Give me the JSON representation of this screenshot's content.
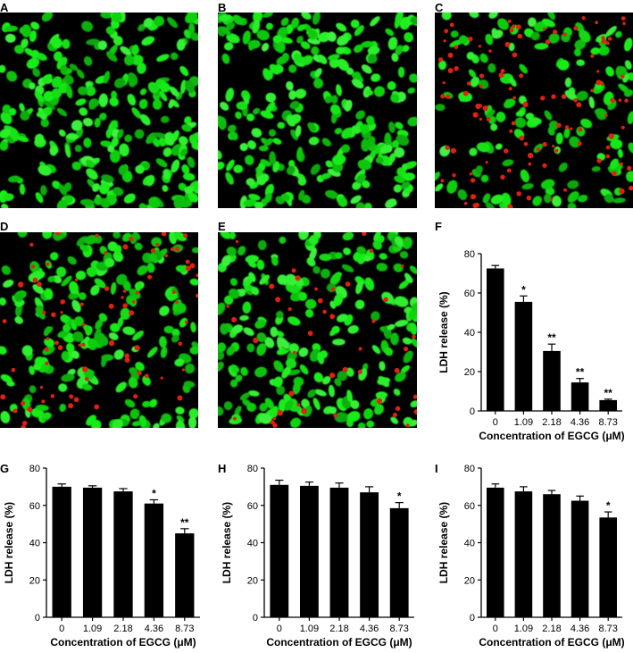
{
  "panels": {
    "micrographs": [
      {
        "letter": "A",
        "green_cells": 1.0,
        "red_cells": 0.0
      },
      {
        "letter": "B",
        "green_cells": 1.0,
        "red_cells": 0.0
      },
      {
        "letter": "C",
        "green_cells": 0.55,
        "red_cells": 1.0
      },
      {
        "letter": "D",
        "green_cells": 0.8,
        "red_cells": 0.7
      },
      {
        "letter": "E",
        "green_cells": 0.9,
        "red_cells": 0.4
      }
    ],
    "colors": {
      "green": "#22e022",
      "red": "#e02010",
      "background": "#000000",
      "bar": "#000000"
    }
  },
  "chart_data": [
    {
      "letter": "F",
      "type": "bar",
      "categories": [
        "0",
        "1.09",
        "2.18",
        "4.36",
        "8.73"
      ],
      "values": [
        72.5,
        55.5,
        30.5,
        14.5,
        5.5
      ],
      "errors": [
        1.5,
        3.0,
        3.5,
        2.0,
        0.5
      ],
      "significance": [
        "",
        "*",
        "**",
        "**",
        "**"
      ],
      "xlabel": "Concentration of EGCG (μM)",
      "ylabel": "LDH release (%)",
      "ylim": [
        0,
        80
      ],
      "yticks": [
        0,
        20,
        40,
        60,
        80
      ]
    },
    {
      "letter": "G",
      "type": "bar",
      "categories": [
        "0",
        "1.09",
        "2.18",
        "4.36",
        "8.73"
      ],
      "values": [
        70.0,
        69.5,
        67.5,
        61.0,
        45.0
      ],
      "errors": [
        1.5,
        1.0,
        1.5,
        2.0,
        2.5
      ],
      "significance": [
        "",
        "",
        "",
        "*",
        "**"
      ],
      "xlabel": "Concentration of EGCG (μM)",
      "ylabel": "LDH release (%)",
      "ylim": [
        0,
        80
      ],
      "yticks": [
        0,
        20,
        40,
        60,
        80
      ]
    },
    {
      "letter": "H",
      "type": "bar",
      "categories": [
        "0",
        "1.09",
        "2.18",
        "4.36",
        "8.73"
      ],
      "values": [
        71.0,
        70.5,
        69.5,
        67.0,
        58.5
      ],
      "errors": [
        2.5,
        2.0,
        2.5,
        3.0,
        3.0
      ],
      "significance": [
        "",
        "",
        "",
        "",
        "*"
      ],
      "xlabel": "Concentration of EGCG (μM)",
      "ylabel": "LDH release (%)",
      "ylim": [
        0,
        80
      ],
      "yticks": [
        0,
        20,
        40,
        60,
        80
      ]
    },
    {
      "letter": "I",
      "type": "bar",
      "categories": [
        "0",
        "1.09",
        "2.18",
        "4.36",
        "8.73"
      ],
      "values": [
        69.5,
        67.5,
        66.0,
        62.5,
        53.5
      ],
      "errors": [
        2.0,
        2.5,
        2.0,
        2.5,
        3.0
      ],
      "significance": [
        "",
        "",
        "",
        "",
        "*"
      ],
      "xlabel": "Concentration of EGCG (μM)",
      "ylabel": "LDH release (%)",
      "ylim": [
        0,
        80
      ],
      "yticks": [
        0,
        20,
        40,
        60,
        80
      ]
    }
  ]
}
